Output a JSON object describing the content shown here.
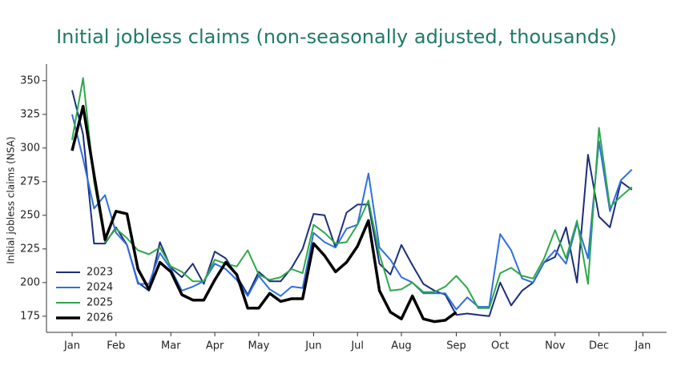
{
  "chart_data": {
    "type": "line",
    "title": "Initial jobless claims (non-seasonally adjusted, thousands)",
    "y_label": "Initial jobless claims (NSA)",
    "categories": [
      "Jan",
      null,
      null,
      null,
      "Feb",
      null,
      null,
      null,
      null,
      "Mar",
      null,
      null,
      null,
      "Apr",
      null,
      null,
      null,
      "May",
      null,
      null,
      null,
      null,
      "Jun",
      null,
      null,
      null,
      "Jul",
      null,
      null,
      null,
      "Aug",
      null,
      null,
      null,
      null,
      "Sep",
      null,
      null,
      null,
      "Oct",
      null,
      null,
      null,
      null,
      "Nov",
      null,
      null,
      null,
      "Dec",
      null,
      null,
      null,
      "Jan"
    ],
    "series": [
      {
        "name": "2023",
        "color": "#1b2f7c",
        "linewidth": 2,
        "values": [
          343,
          310,
          229,
          229,
          241,
          228,
          200,
          194,
          230,
          211,
          204,
          214,
          199,
          223,
          218,
          205,
          191,
          208,
          201,
          201,
          211,
          225,
          251,
          250,
          226,
          252,
          258,
          258,
          214,
          206,
          228,
          213,
          199,
          194,
          191,
          176,
          177,
          176,
          175,
          200,
          183,
          194,
          200,
          215,
          219,
          241,
          200,
          295,
          249,
          241,
          275,
          269,
          null
        ]
      },
      {
        "name": "2024",
        "color": "#2f6fe0",
        "linewidth": 2,
        "values": [
          325,
          292,
          255,
          265,
          237,
          228,
          199,
          199,
          222,
          210,
          194,
          197,
          201,
          214,
          210,
          202,
          190,
          205,
          195,
          190,
          197,
          196,
          237,
          230,
          226,
          240,
          243,
          281,
          226,
          217,
          204,
          200,
          192,
          192,
          192,
          180,
          189,
          182,
          182,
          236,
          224,
          203,
          200,
          215,
          224,
          214,
          244,
          218,
          305,
          253,
          276,
          284,
          null
        ]
      },
      {
        "name": "2025",
        "color": "#2ea84a",
        "linewidth": 2,
        "values": [
          306,
          352,
          275,
          230,
          240,
          233,
          224,
          221,
          226,
          212,
          208,
          201,
          201,
          217,
          214,
          212,
          224,
          206,
          202,
          204,
          210,
          207,
          243,
          237,
          229,
          230,
          243,
          261,
          221,
          194,
          195,
          200,
          193,
          193,
          197,
          205,
          196,
          181,
          181,
          207,
          211,
          205,
          203,
          218,
          239,
          218,
          246,
          199,
          315,
          256,
          264,
          271,
          null
        ]
      },
      {
        "name": "2026",
        "color": "#000000",
        "linewidth": 3.5,
        "values": [
          298,
          331,
          280,
          232,
          253,
          251,
          210,
          195,
          215,
          208,
          191,
          187,
          187,
          202,
          215,
          206,
          181,
          181,
          192,
          186,
          188,
          188,
          229,
          220,
          208,
          215,
          227,
          246,
          194,
          178,
          173,
          190,
          173,
          171,
          172,
          178,
          null,
          null,
          null,
          null,
          null,
          null,
          null,
          null,
          null,
          null,
          null,
          null,
          null,
          null,
          null,
          null,
          null
        ]
      }
    ],
    "ylim": [
      163,
      360
    ],
    "yticks": [
      175,
      200,
      225,
      250,
      275,
      300,
      325,
      350
    ],
    "title_color": "#1f7a68"
  }
}
